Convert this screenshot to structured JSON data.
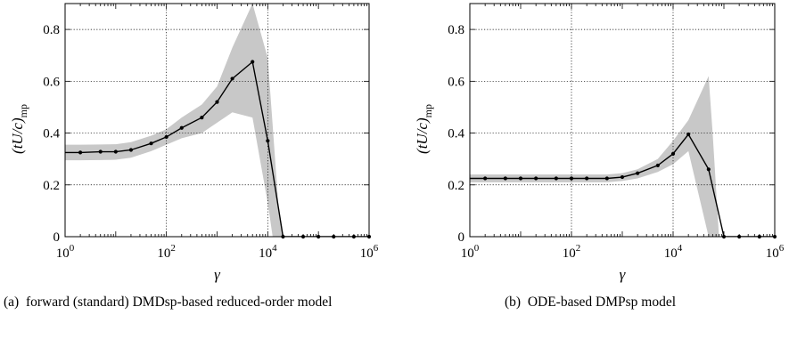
{
  "chart_data": [
    {
      "type": "line",
      "panel_label": "(a)",
      "caption": "forward (standard) DMDsp-based reduced-order model",
      "xlabel": "γ",
      "ylabel_main": "(tU/c)",
      "ylabel_sub": "mp",
      "x_scale": "log",
      "xlim": [
        1,
        1000000
      ],
      "ylim": [
        0,
        0.9
      ],
      "x_ticks": [
        1,
        100,
        10000,
        1000000
      ],
      "x_tick_labels": [
        {
          "base": "10",
          "exp": "0"
        },
        {
          "base": "10",
          "exp": "2"
        },
        {
          "base": "10",
          "exp": "4"
        },
        {
          "base": "10",
          "exp": "6"
        }
      ],
      "y_ticks": [
        0,
        0.2,
        0.4,
        0.6,
        0.8
      ],
      "y_tick_labels": [
        "0",
        "0.2",
        "0.4",
        "0.6",
        "0.8"
      ],
      "grid": true,
      "mean": {
        "x": [
          1,
          2,
          5,
          10,
          20,
          50,
          100,
          200,
          500,
          1000,
          2000,
          5000,
          10000,
          20000,
          50000,
          100000,
          200000,
          500000,
          1000000
        ],
        "y": [
          0.325,
          0.325,
          0.328,
          0.328,
          0.335,
          0.36,
          0.385,
          0.42,
          0.46,
          0.52,
          0.61,
          0.675,
          0.37,
          0,
          0,
          0,
          0,
          0,
          0
        ],
        "markers_from_index": 1
      },
      "band": {
        "x": [
          1,
          2,
          5,
          10,
          20,
          50,
          100,
          200,
          500,
          1000,
          2000,
          5000,
          10000,
          12500,
          16500,
          20000
        ],
        "upper": [
          0.355,
          0.355,
          0.356,
          0.357,
          0.365,
          0.39,
          0.415,
          0.46,
          0.51,
          0.58,
          0.73,
          0.9,
          0.69,
          0.43,
          0.1,
          0
        ],
        "lower": [
          0.295,
          0.295,
          0.296,
          0.297,
          0.305,
          0.33,
          0.355,
          0.38,
          0.4,
          0.44,
          0.48,
          0.46,
          0.13,
          0,
          0,
          0
        ]
      }
    },
    {
      "type": "line",
      "panel_label": "(b)",
      "caption": "ODE-based DMPsp model",
      "xlabel": "γ",
      "ylabel_main": "(tU/c)",
      "ylabel_sub": "mp",
      "x_scale": "log",
      "xlim": [
        1,
        1000000
      ],
      "ylim": [
        0,
        0.9
      ],
      "x_ticks": [
        1,
        100,
        10000,
        1000000
      ],
      "x_tick_labels": [
        {
          "base": "10",
          "exp": "0"
        },
        {
          "base": "10",
          "exp": "2"
        },
        {
          "base": "10",
          "exp": "4"
        },
        {
          "base": "10",
          "exp": "6"
        }
      ],
      "y_ticks": [
        0,
        0.2,
        0.4,
        0.6,
        0.8
      ],
      "y_tick_labels": [
        "0",
        "0.2",
        "0.4",
        "0.6",
        "0.8"
      ],
      "grid": true,
      "mean": {
        "x": [
          1,
          2,
          5,
          10,
          20,
          50,
          100,
          200,
          500,
          1000,
          2000,
          5000,
          10000,
          20000,
          50000,
          100000,
          200000,
          500000,
          1000000
        ],
        "y": [
          0.225,
          0.225,
          0.225,
          0.225,
          0.225,
          0.225,
          0.225,
          0.225,
          0.225,
          0.23,
          0.245,
          0.275,
          0.32,
          0.395,
          0.26,
          0,
          0,
          0,
          0
        ],
        "markers_from_index": 1
      },
      "band": {
        "x": [
          1,
          2,
          5,
          10,
          20,
          50,
          100,
          200,
          500,
          1000,
          2000,
          5000,
          10000,
          20000,
          50000,
          60000,
          80000
        ],
        "upper": [
          0.24,
          0.24,
          0.24,
          0.24,
          0.24,
          0.24,
          0.24,
          0.24,
          0.24,
          0.245,
          0.26,
          0.3,
          0.37,
          0.45,
          0.62,
          0.4,
          0
        ],
        "lower": [
          0.21,
          0.21,
          0.21,
          0.21,
          0.21,
          0.21,
          0.21,
          0.21,
          0.21,
          0.215,
          0.225,
          0.25,
          0.28,
          0.33,
          0.0,
          0,
          0
        ]
      }
    }
  ]
}
